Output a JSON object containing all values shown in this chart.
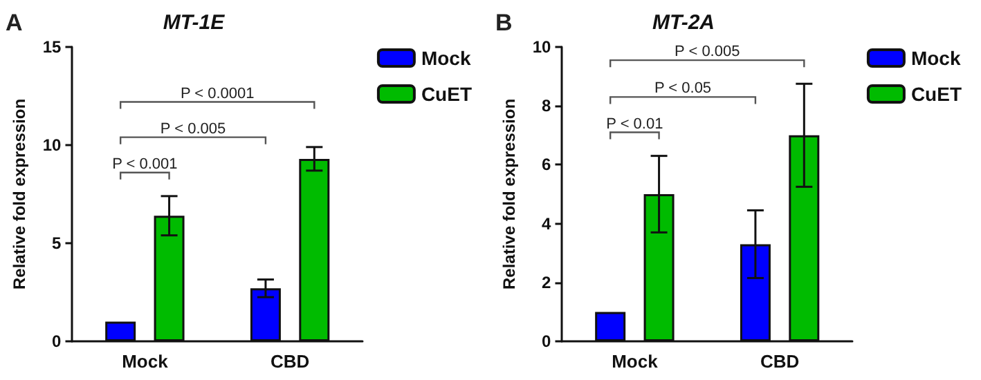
{
  "chart_data": [
    {
      "type": "bar",
      "title": "MT-1E",
      "ylabel": "Relative fold expression",
      "categories": [
        "Mock",
        "CBD"
      ],
      "series": [
        {
          "name": "Mock",
          "color": "#0000ff",
          "values": [
            1,
            2.7
          ],
          "errors": [
            null,
            0.45
          ]
        },
        {
          "name": "CuET",
          "color": "#00bb00",
          "values": [
            6.4,
            9.3
          ],
          "errors": [
            1.0,
            0.6
          ]
        }
      ],
      "ylim": [
        0,
        15
      ],
      "yticks": [
        0,
        5,
        10,
        15
      ],
      "grid": false,
      "legend": "top right",
      "annotations": [
        "A",
        "P < 0.001",
        "P < 0.005",
        "P < 0.0001"
      ]
    },
    {
      "type": "bar",
      "title": "MT-2A",
      "ylabel": "Relative fold expression",
      "categories": [
        "Mock",
        "CBD"
      ],
      "series": [
        {
          "name": "Mock",
          "color": "#0000ff",
          "values": [
            1,
            3.3
          ],
          "errors": [
            null,
            1.15
          ]
        },
        {
          "name": "CuET",
          "color": "#00bb00",
          "values": [
            5.0,
            7.0
          ],
          "errors": [
            1.3,
            1.75
          ]
        }
      ],
      "ylim": [
        0,
        10
      ],
      "yticks": [
        0,
        2,
        4,
        6,
        8,
        10
      ],
      "grid": false,
      "legend": "top right",
      "annotations": [
        "B",
        "P < 0.01",
        "P < 0.05",
        "P < 0.005"
      ]
    }
  ]
}
